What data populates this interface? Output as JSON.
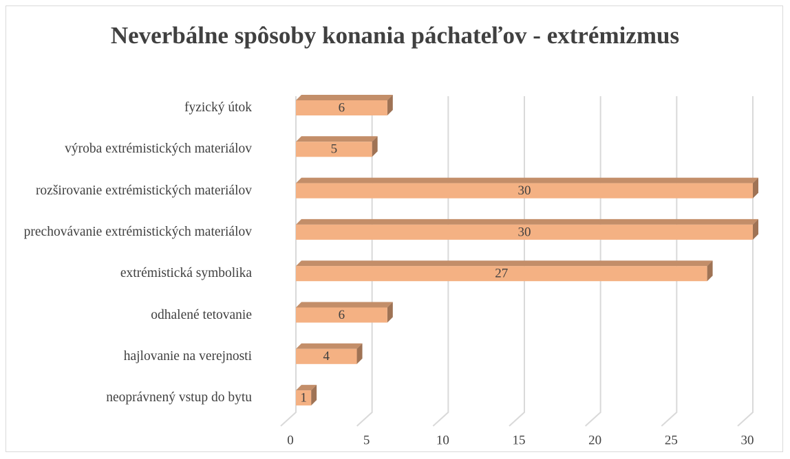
{
  "chart_data": {
    "type": "bar",
    "orientation": "horizontal",
    "title": "Neverbálne spôsoby konania páchateľov - extrémizmus",
    "categories": [
      "fyzický útok",
      "výroba extrémistických materiálov",
      "rozširovanie extrémistických materiálov",
      "prechovávanie extrémistických materiálov",
      "extrémistická symbolika",
      "odhalené tetovanie",
      "hajlovanie na verejnosti",
      "neoprávnený vstup do bytu"
    ],
    "values": [
      6,
      5,
      30,
      30,
      27,
      6,
      4,
      1
    ],
    "color": "#f4b183",
    "xlim": [
      0,
      30
    ],
    "xticks": [
      0,
      5,
      10,
      15,
      20,
      25,
      30
    ],
    "grid": true
  }
}
